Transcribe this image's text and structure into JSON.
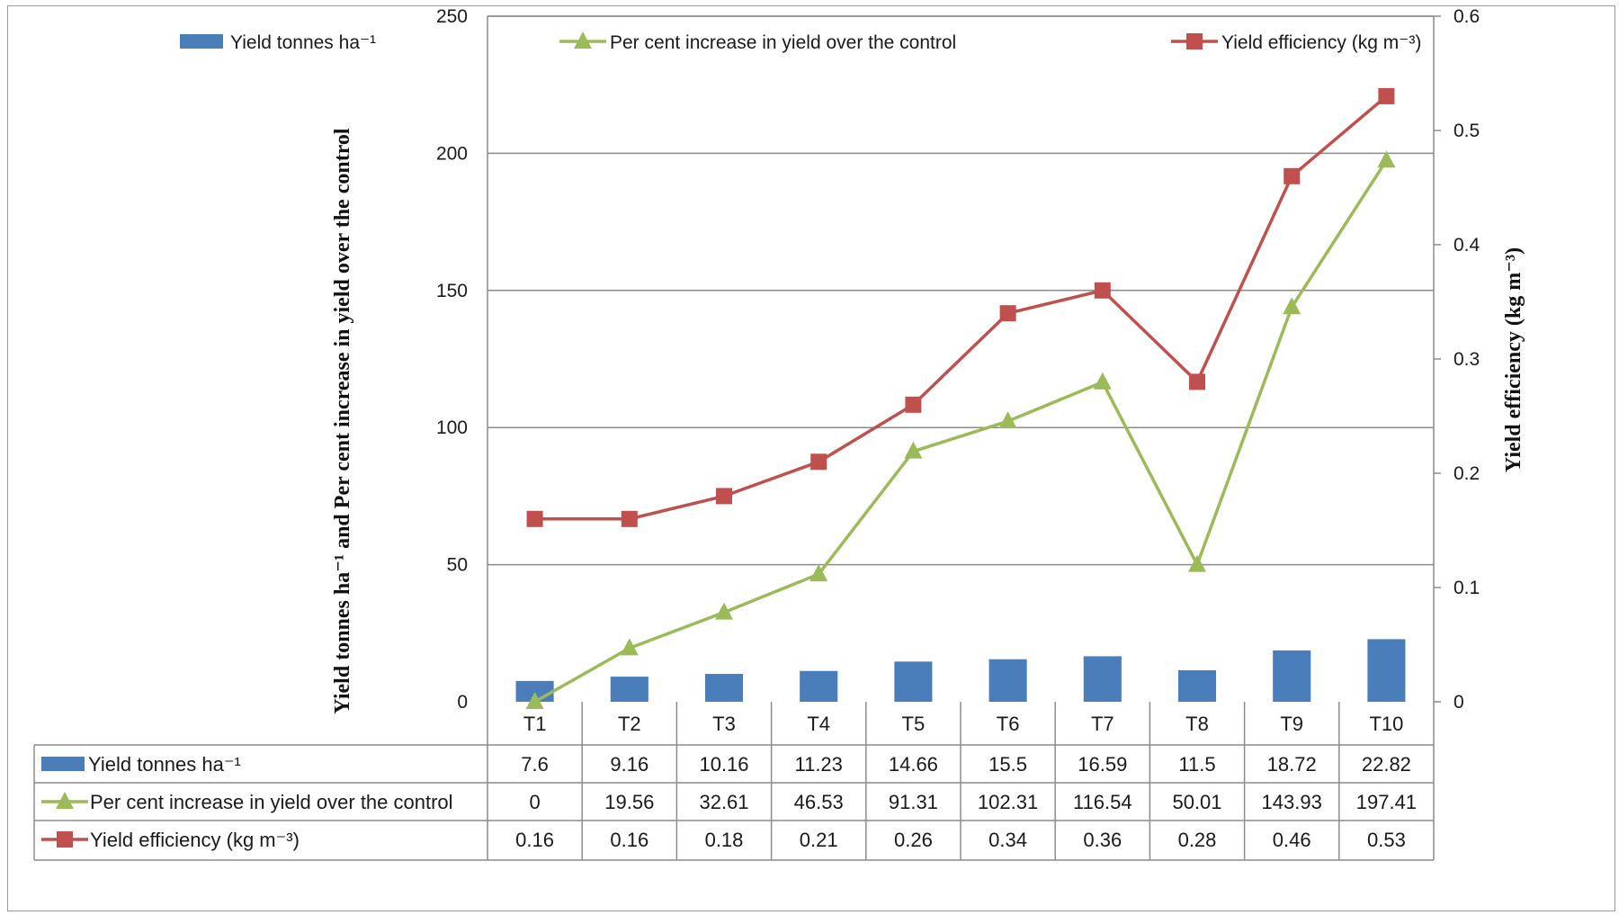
{
  "chart_data": {
    "type": "bar",
    "categories": [
      "T1",
      "T2",
      "T3",
      "T4",
      "T5",
      "T6",
      "T7",
      "T8",
      "T9",
      "T10"
    ],
    "series": [
      {
        "name": "Yield tonnes ha⁻¹",
        "type": "bar",
        "axis": "left",
        "color": "#4a7ebb",
        "values": [
          7.6,
          9.16,
          10.16,
          11.23,
          14.66,
          15.5,
          16.59,
          11.5,
          18.72,
          22.82
        ],
        "labels": [
          "7.6",
          "9.16",
          "10.16",
          "11.23",
          "14.66",
          "15.5",
          "16.59",
          "11.5",
          "18.72",
          "22.82"
        ]
      },
      {
        "name": "Per cent increase in yield over the control",
        "type": "line",
        "marker": "triangle",
        "axis": "left",
        "color": "#9bbb59",
        "values": [
          0,
          19.56,
          32.61,
          46.53,
          91.31,
          102.31,
          116.54,
          50.01,
          143.93,
          197.41
        ],
        "labels": [
          "0",
          "19.56",
          "32.61",
          "46.53",
          "91.31",
          "102.31",
          "116.54",
          "50.01",
          "143.93",
          "197.41"
        ]
      },
      {
        "name": "Yield efficiency (kg m⁻³)",
        "type": "line",
        "marker": "square",
        "axis": "right",
        "color": "#c0504d",
        "values": [
          0.16,
          0.16,
          0.18,
          0.21,
          0.26,
          0.34,
          0.36,
          0.28,
          0.46,
          0.53
        ],
        "labels": [
          "0.16",
          "0.16",
          "0.18",
          "0.21",
          "0.26",
          "0.34",
          "0.36",
          "0.28",
          "0.46",
          "0.53"
        ]
      }
    ],
    "ylabel": "Yield tonnes ha⁻¹ and Per cent increase in yield over the control",
    "ylabel_right": "Yield efficiency (kg m⁻³)",
    "ylim": [
      0,
      250
    ],
    "yticks": [
      "0",
      "50",
      "100",
      "150",
      "200",
      "250"
    ],
    "ylim_right": [
      0,
      0.6
    ],
    "yticks_right": [
      "0",
      "0.1",
      "0.2",
      "0.3",
      "0.4",
      "0.5",
      "0.6"
    ],
    "grid": true,
    "legend": "top",
    "data_table": true,
    "grid_color": "#8c8c8c"
  }
}
